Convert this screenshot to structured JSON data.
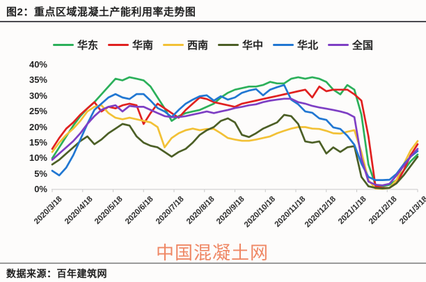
{
  "title": "图2：重点区域混凝土产能利用率走势图",
  "source": "数据来源：百年建筑网",
  "watermark": "中国混凝土网",
  "chart_data": {
    "type": "line",
    "title": "重点区域混凝土产能利用率走势图",
    "unit": "%",
    "grid": false,
    "legend_position": "top",
    "sampling": "weekly",
    "x_start": "2020/3/18",
    "x_end": "2021/3/18",
    "ylim": [
      0,
      40
    ],
    "y_ticks": [
      "40%",
      "35%",
      "30%",
      "25%",
      "20%",
      "15%",
      "10%",
      "5%",
      "0%"
    ],
    "x_labels": [
      "2020/3/18",
      "2020/4/18",
      "2020/5/18",
      "2020/6/18",
      "2020/7/18",
      "2020/8/18",
      "2020/9/18",
      "2020/10/18",
      "2020/11/18",
      "2020/12/18",
      "2021/1/18",
      "2021/2/18",
      "2021/3/18"
    ],
    "series": [
      {
        "key": "huadong",
        "name": "华东",
        "color": "#2cb05a",
        "values": [
          10,
          13.5,
          17,
          20.5,
          23.5,
          26,
          28,
          30.5,
          33,
          35.5,
          35,
          36,
          35.5,
          35,
          33,
          29.5,
          26,
          22,
          23.5,
          24.5,
          25,
          25.5,
          26.5,
          27.5,
          29.5,
          31,
          32,
          32.5,
          33,
          33,
          33.5,
          34.5,
          34,
          34,
          35.5,
          36,
          35.5,
          36,
          35.5,
          34.5,
          32,
          30.5,
          33.5,
          32,
          24,
          8,
          1.5,
          1,
          1.5,
          3,
          6,
          9,
          11.2
        ]
      },
      {
        "key": "huanan",
        "name": "华南",
        "color": "#e02120",
        "values": [
          13,
          16.5,
          19.5,
          21.5,
          24,
          26,
          28,
          25,
          26.5,
          26,
          27,
          27.5,
          27,
          21,
          24.5,
          27.5,
          26,
          24.5,
          23,
          25.5,
          27.5,
          29.5,
          29,
          28,
          27.5,
          27,
          26.5,
          27.5,
          28,
          28.5,
          29,
          29.5,
          30,
          30.5,
          31,
          31.5,
          32,
          29.5,
          33,
          31.5,
          32,
          32,
          32,
          30.5,
          28.5,
          17,
          1,
          0.5,
          0.5,
          2,
          6,
          11,
          14.5
        ]
      },
      {
        "key": "xinan",
        "name": "西南",
        "color": "#f2c136",
        "values": [
          12,
          15,
          17.5,
          19.5,
          22,
          25,
          26.5,
          27,
          24.5,
          23,
          22.5,
          23,
          22.5,
          22,
          21.5,
          20,
          13.5,
          16.5,
          18,
          19,
          19.5,
          19,
          19.4,
          19.4,
          18,
          16.5,
          16,
          15.6,
          15.6,
          16,
          16.5,
          17,
          18,
          18.8,
          19.5,
          20,
          20,
          19.5,
          19.4,
          18.8,
          18,
          17.9,
          18.5,
          19,
          12,
          3,
          0.3,
          0.2,
          0.5,
          3,
          8,
          12.5,
          15.5
        ]
      },
      {
        "key": "huazhong",
        "name": "华中",
        "color": "#4c5f26",
        "values": [
          8,
          9.5,
          11.5,
          13.5,
          15.5,
          17,
          14.5,
          16,
          18,
          19.5,
          21,
          20.5,
          17,
          15,
          14,
          13.5,
          12,
          10.5,
          12,
          13,
          15,
          17.5,
          19,
          20,
          22,
          22.8,
          21.5,
          17.5,
          16.8,
          18,
          19.5,
          20.5,
          21.5,
          23.9,
          23.5,
          21,
          15.4,
          15,
          15.4,
          11.5,
          13.5,
          12,
          13.5,
          13.9,
          4,
          1,
          0.5,
          0.3,
          0.5,
          2,
          4.5,
          7.5,
          10.5
        ]
      },
      {
        "key": "huabei",
        "name": "华北",
        "color": "#2177d2",
        "values": [
          6,
          4.5,
          7,
          11,
          16,
          21,
          25.5,
          27.5,
          29.5,
          30.6,
          29.5,
          29,
          30.6,
          30.6,
          28.5,
          26.1,
          25,
          23.2,
          25.5,
          27.5,
          28.8,
          29.9,
          30.2,
          28.5,
          29.9,
          28.8,
          29.5,
          31,
          31.7,
          32.2,
          30.2,
          32,
          32.8,
          33.5,
          28.8,
          27.3,
          25,
          24.6,
          22.8,
          22.3,
          19.9,
          19.4,
          17.2,
          14.3,
          8.3,
          4,
          3,
          3,
          3.1,
          5,
          8,
          10.5,
          12.3
        ]
      },
      {
        "key": "quanguo",
        "name": "全国",
        "color": "#7e3fc4",
        "values": [
          9.5,
          11.5,
          13.5,
          15.5,
          18,
          21,
          23.5,
          25.5,
          26.5,
          27,
          25,
          26.8,
          26.5,
          26.5,
          25.5,
          24.5,
          23.5,
          23.2,
          23.2,
          23.5,
          24,
          24.5,
          25,
          24.5,
          25,
          25.5,
          26.1,
          26.5,
          27,
          27.3,
          28,
          28.5,
          28.8,
          29.1,
          29.1,
          28,
          27.5,
          26.8,
          26.3,
          25.9,
          25.5,
          25,
          24.4,
          23.2,
          10,
          2.5,
          1.5,
          1.3,
          1.8,
          4.5,
          7.5,
          10.5,
          13
        ]
      }
    ]
  }
}
